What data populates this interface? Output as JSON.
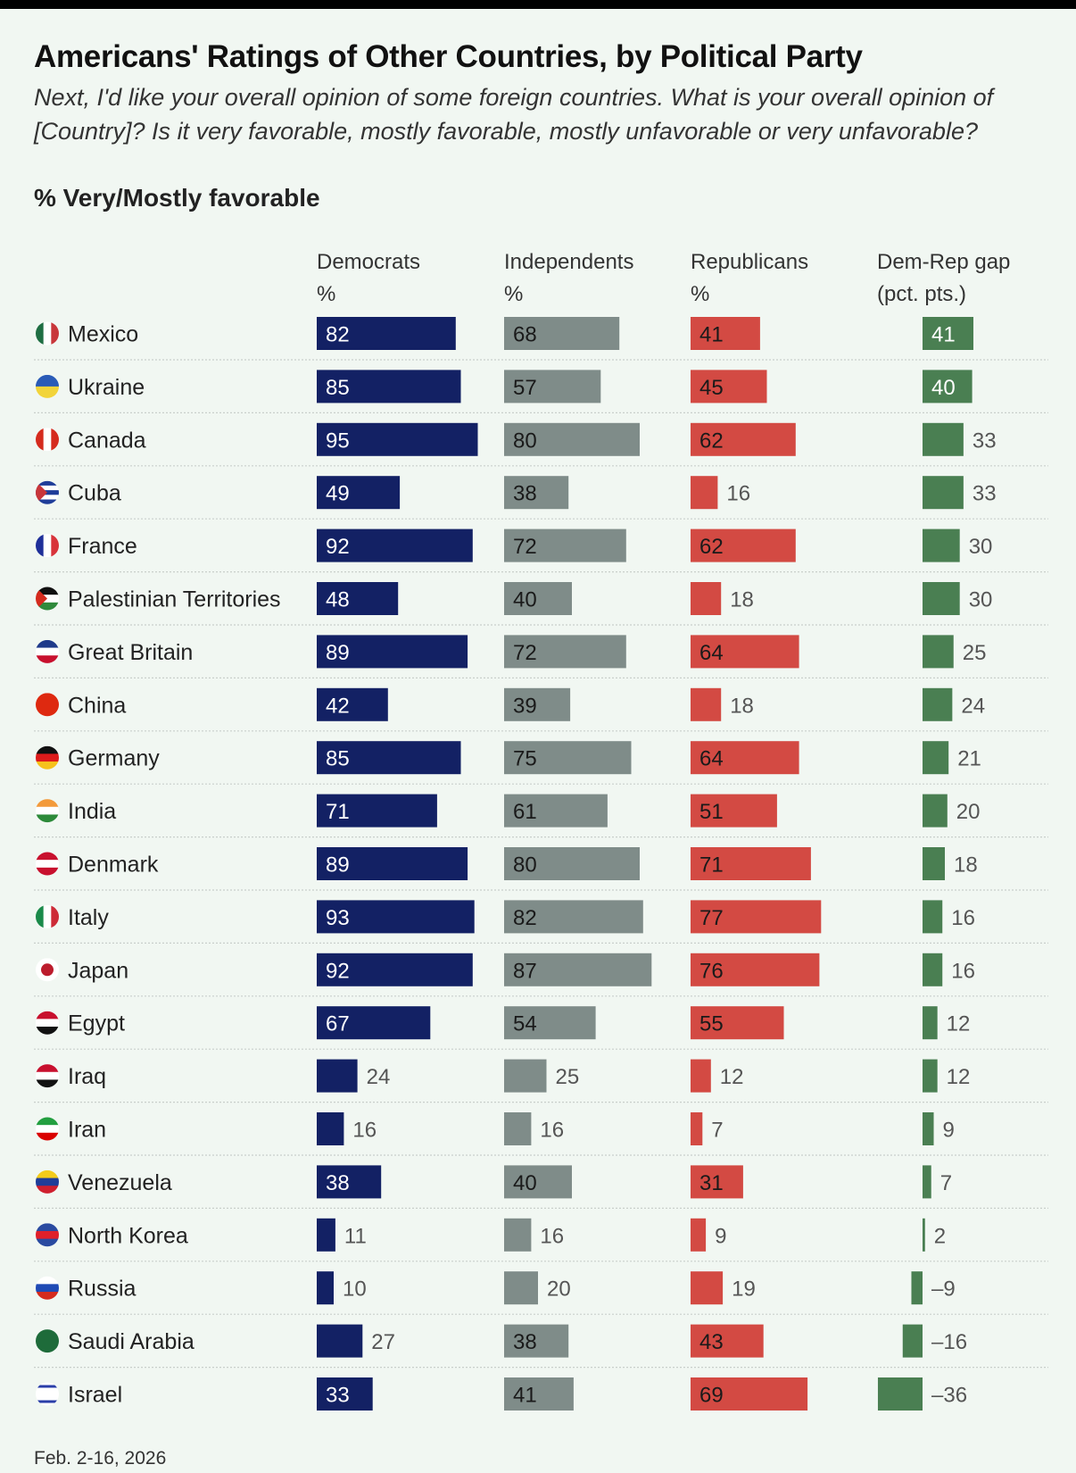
{
  "chart_data": {
    "type": "bar",
    "title": "Americans' Ratings of Other Countries, by Political Party",
    "subtitle": "Next, I'd like your overall opinion of some foreign countries. What is your overall opinion of [Country]? Is it very favorable, mostly favorable, mostly unfavorable or very unfavorable?",
    "measure": "% Very/Mostly favorable",
    "orientation": "horizontal",
    "grid": false,
    "legend": "none",
    "columns": [
      {
        "key": "dem",
        "label_line1": "Democrats",
        "label_line2": "%",
        "color": "#132164"
      },
      {
        "key": "ind",
        "label_line1": "Independents",
        "label_line2": "%",
        "color": "#7f8c89"
      },
      {
        "key": "rep",
        "label_line1": "Republicans",
        "label_line2": "%",
        "color": "#d34a43"
      },
      {
        "key": "gap",
        "label_line1": "Dem-Rep gap",
        "label_line2": "(pct. pts.)",
        "color": "#4a7f52"
      }
    ],
    "categories": [
      "Mexico",
      "Ukraine",
      "Canada",
      "Cuba",
      "France",
      "Palestinian Territories",
      "Great Britain",
      "China",
      "Germany",
      "India",
      "Denmark",
      "Italy",
      "Japan",
      "Egypt",
      "Iraq",
      "Iran",
      "Venezuela",
      "North Korea",
      "Russia",
      "Saudi Arabia",
      "Israel"
    ],
    "flag_icons": [
      "mexico-flag-icon",
      "ukraine-flag-icon",
      "canada-flag-icon",
      "cuba-flag-icon",
      "france-flag-icon",
      "palestine-flag-icon",
      "great-britain-flag-icon",
      "china-flag-icon",
      "germany-flag-icon",
      "india-flag-icon",
      "denmark-flag-icon",
      "italy-flag-icon",
      "japan-flag-icon",
      "egypt-flag-icon",
      "iraq-flag-icon",
      "iran-flag-icon",
      "venezuela-flag-icon",
      "north-korea-flag-icon",
      "russia-flag-icon",
      "saudi-arabia-flag-icon",
      "israel-flag-icon"
    ],
    "series": [
      {
        "name": "Democrats",
        "values": [
          82,
          85,
          95,
          49,
          92,
          48,
          89,
          42,
          85,
          71,
          89,
          93,
          92,
          67,
          24,
          16,
          38,
          11,
          10,
          27,
          33
        ]
      },
      {
        "name": "Independents",
        "values": [
          68,
          57,
          80,
          38,
          72,
          40,
          72,
          39,
          75,
          61,
          80,
          82,
          87,
          54,
          25,
          16,
          40,
          16,
          20,
          38,
          41
        ]
      },
      {
        "name": "Republicans",
        "values": [
          41,
          45,
          62,
          16,
          62,
          18,
          64,
          18,
          64,
          51,
          71,
          77,
          76,
          55,
          12,
          7,
          31,
          9,
          19,
          43,
          69
        ]
      },
      {
        "name": "Dem-Rep gap",
        "values": [
          41,
          40,
          33,
          33,
          30,
          30,
          25,
          24,
          21,
          20,
          18,
          16,
          16,
          12,
          12,
          9,
          7,
          2,
          -9,
          -16,
          -36
        ]
      }
    ],
    "xlim": [
      0,
      100
    ],
    "gap_unit": "pct. pts."
  },
  "footer": {
    "date": "Feb. 2-16, 2026"
  }
}
